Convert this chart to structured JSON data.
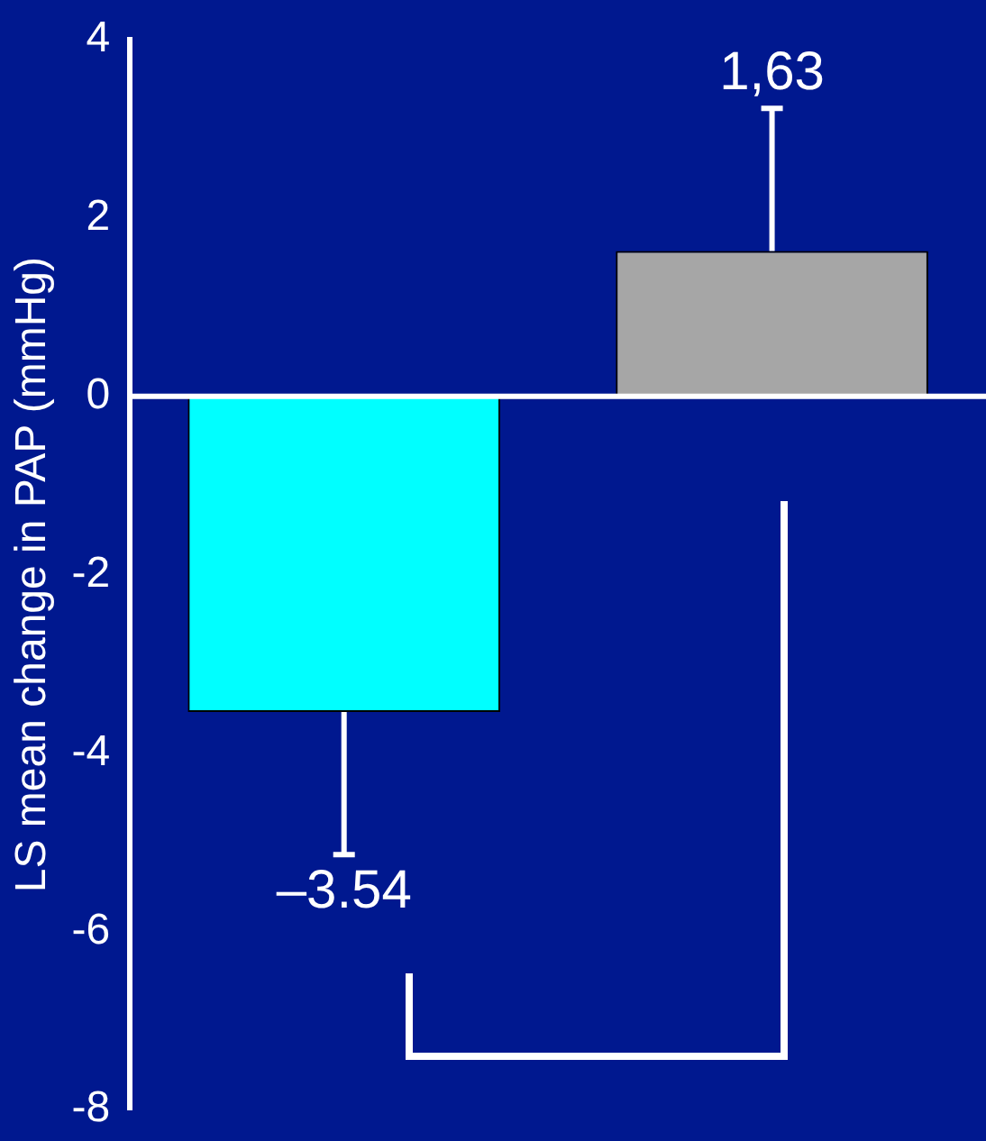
{
  "chart_data": {
    "type": "bar",
    "ylabel": "LS mean change in PAP (mmHg)",
    "categories": [
      null,
      null
    ],
    "values": [
      -3.54,
      1.63
    ],
    "colors": [
      "#00ffff",
      "#a6a6a6"
    ],
    "errors": [
      1.6,
      1.6
    ],
    "value_labels": [
      "–3.54",
      "1,63"
    ],
    "ylim": [
      -8,
      4
    ],
    "yticks": [
      -8,
      -6,
      -4,
      -2,
      0,
      2,
      4
    ],
    "ref_lines": [
      {
        "axis": "y",
        "value": 0,
        "color": "#ffffff"
      }
    ],
    "grid": false,
    "legend": false
  }
}
